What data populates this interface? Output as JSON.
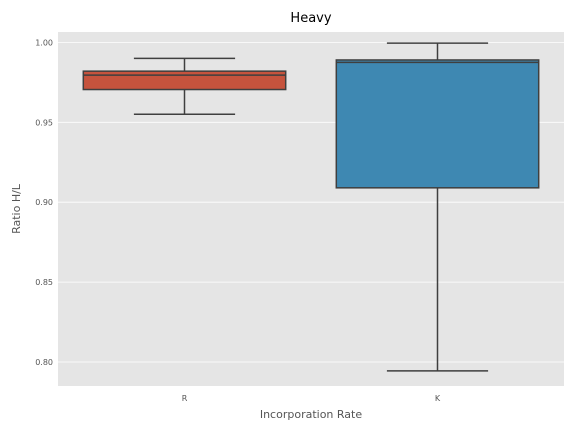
{
  "chart_data": {
    "type": "box",
    "title": "Heavy",
    "xlabel": "Incorporation Rate",
    "ylabel": "Ratio H/L",
    "categories": [
      "R",
      "K"
    ],
    "ylim": [
      0.785,
      1.0065
    ],
    "yticks": [
      "0.80",
      "0.85",
      "0.90",
      "0.95",
      "1.00"
    ],
    "grid": true,
    "background": "#e5e5e5",
    "boxes": [
      {
        "category": "R",
        "whisker_low": 0.955,
        "q1": 0.9705,
        "median": 0.9795,
        "q3": 0.982,
        "whisker_high": 0.99,
        "color": "#c6533d"
      },
      {
        "category": "K",
        "whisker_low": 0.7945,
        "q1": 0.909,
        "median": 0.9875,
        "q3": 0.989,
        "whisker_high": 0.9995,
        "color": "#3e88b2"
      }
    ]
  }
}
